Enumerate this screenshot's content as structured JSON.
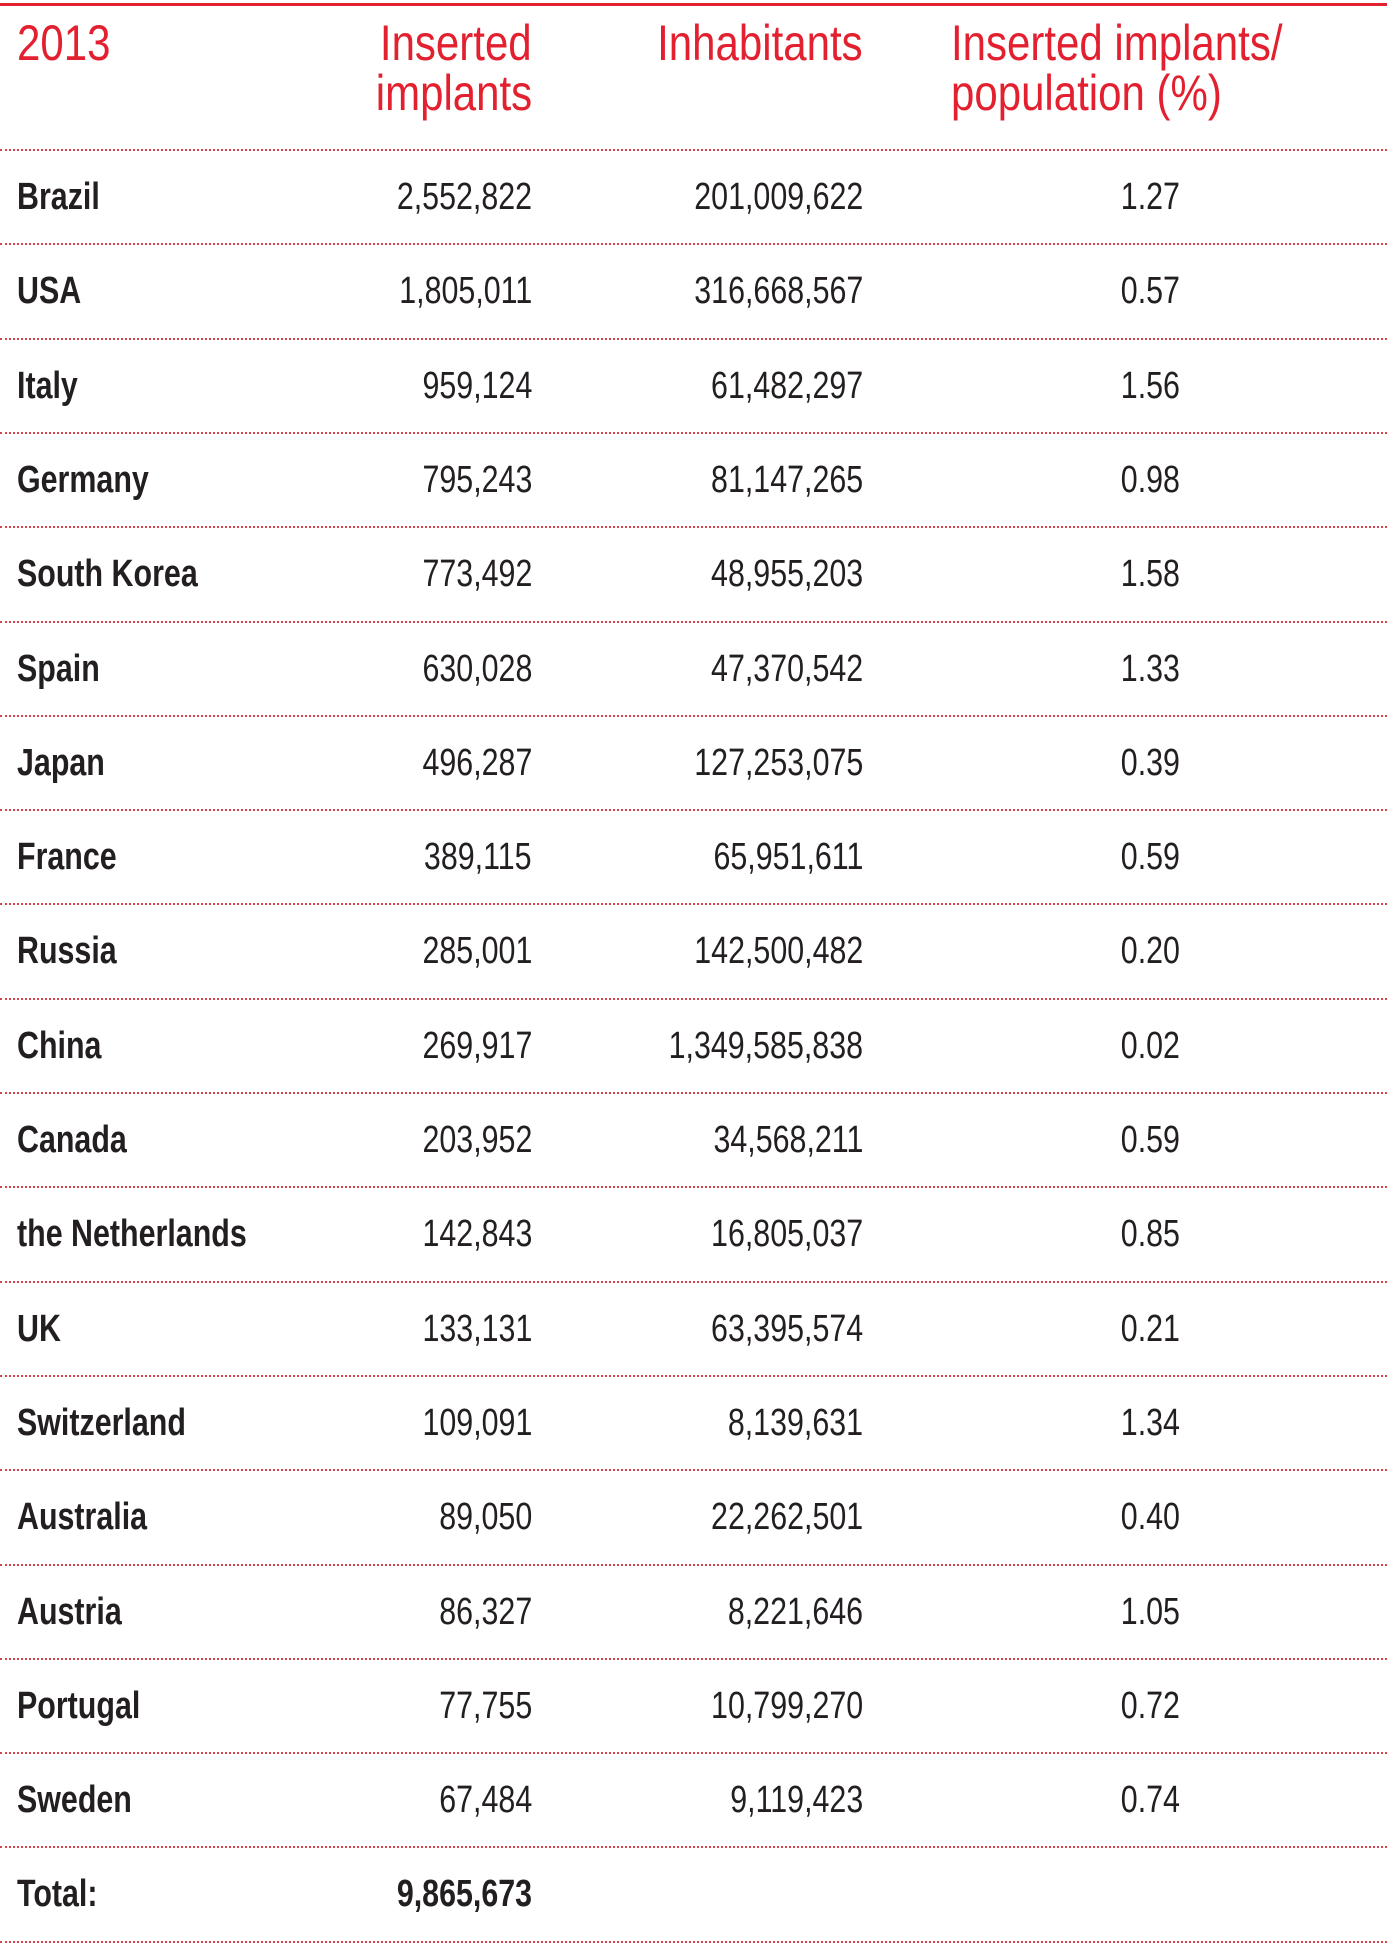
{
  "colors": {
    "accent": "#e3202f",
    "text": "#231f20"
  },
  "table": {
    "headers": [
      "2013",
      "Inserted implants",
      "Inhabitants",
      "Inserted implants/ population (%)"
    ],
    "header_lines": [
      [
        "2013"
      ],
      [
        "Inserted",
        "implants"
      ],
      [
        "Inhabitants"
      ],
      [
        "Inserted implants/",
        "population (%)"
      ]
    ],
    "rows": [
      [
        "Brazil",
        "2,552,822",
        "201,009,622",
        "1.27"
      ],
      [
        "USA",
        "1,805,011",
        "316,668,567",
        "0.57"
      ],
      [
        "Italy",
        "959,124",
        "61,482,297",
        "1.56"
      ],
      [
        "Germany",
        "795,243",
        "81,147,265",
        "0.98"
      ],
      [
        "South Korea",
        "773,492",
        "48,955,203",
        "1.58"
      ],
      [
        "Spain",
        "630,028",
        "47,370,542",
        "1.33"
      ],
      [
        "Japan",
        "496,287",
        "127,253,075",
        "0.39"
      ],
      [
        "France",
        "389,115",
        "65,951,611",
        "0.59"
      ],
      [
        "Russia",
        "285,001",
        "142,500,482",
        "0.20"
      ],
      [
        "China",
        "269,917",
        "1,349,585,838",
        "0.02"
      ],
      [
        "Canada",
        "203,952",
        "34,568,211",
        "0.59"
      ],
      [
        "the Netherlands",
        "142,843",
        "16,805,037",
        "0.85"
      ],
      [
        "UK",
        "133,131",
        "63,395,574",
        "0.21"
      ],
      [
        "Switzerland",
        "109,091",
        "8,139,631",
        "1.34"
      ],
      [
        "Australia",
        "89,050",
        "22,262,501",
        "0.40"
      ],
      [
        "Austria",
        "86,327",
        "8,221,646",
        "1.05"
      ],
      [
        "Portugal",
        "77,755",
        "10,799,270",
        "0.72"
      ],
      [
        "Sweden",
        "67,484",
        "9,119,423",
        "0.74"
      ]
    ],
    "total": {
      "label": "Total:",
      "implants": "9,865,673"
    }
  }
}
